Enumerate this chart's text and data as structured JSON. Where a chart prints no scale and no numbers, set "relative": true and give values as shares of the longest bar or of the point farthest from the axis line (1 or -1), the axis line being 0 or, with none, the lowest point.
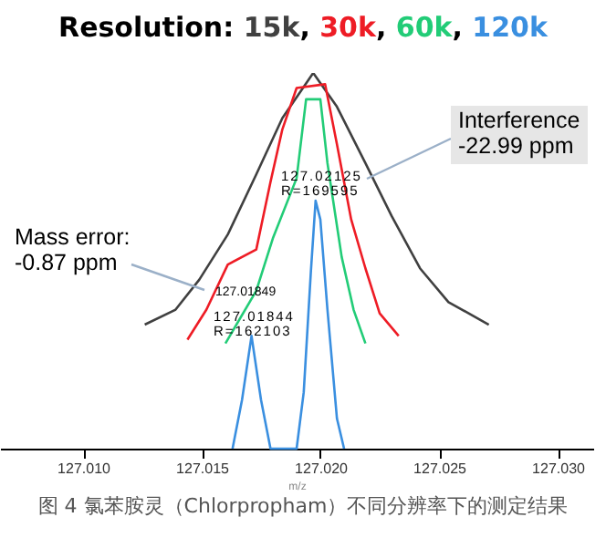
{
  "chart_data": {
    "type": "line",
    "title": "Resolution: 15k, 30k, 60k, 120k",
    "xlabel": "m/z",
    "relative": true,
    "xlim": [
      127.0065,
      127.0315
    ],
    "xticks": [
      {
        "value": 127.01,
        "label": "127.010"
      },
      127.015,
      {
        "value": 127.02,
        "label": "127.020"
      },
      127.025,
      {
        "value": 127.03,
        "label": "127.030"
      }
    ],
    "series": [
      {
        "color": "#404040",
        "x": [
          127.0126,
          127.0139,
          127.0149,
          127.0161,
          127.0173,
          127.0184,
          127.0197,
          127.0207,
          127.0219,
          127.023,
          127.0242,
          127.0254,
          127.0271
        ],
        "values": [
          0.33,
          0.37,
          0.45,
          0.57,
          0.73,
          0.88,
          1,
          0.91,
          0.76,
          0.62,
          0.48,
          0.39,
          0.33
        ]
      },
      {
        "color": "#ee1c25",
        "x": [
          127.0144,
          127.0152,
          127.0161,
          127.0173,
          127.0179,
          127.0184,
          127.019,
          127.0202,
          127.0207,
          127.0213,
          127.0219,
          127.0225,
          127.0233
        ],
        "values": [
          0.29,
          0.37,
          0.49,
          0.53,
          0.71,
          0.85,
          0.96,
          0.97,
          0.81,
          0.61,
          0.48,
          0.36,
          0.3
        ]
      },
      {
        "color": "#22cc77",
        "x": [
          127.016,
          127.0173,
          127.018,
          127.019,
          127.0194,
          127.02,
          127.0203,
          127.0209,
          127.0214,
          127.0219
        ],
        "values": [
          0.28,
          0.42,
          0.56,
          0.72,
          0.93,
          0.93,
          0.76,
          0.51,
          0.37,
          0.28
        ]
      },
      {
        "color": "#3a8fe0",
        "x": [
          127.0163,
          127.0167,
          127.0171,
          127.0175,
          127.0179,
          127.019,
          127.0193,
          127.0196,
          127.0198,
          127.02,
          127.0203,
          127.0207,
          127.021
        ],
        "values": [
          0,
          0.13,
          0.3,
          0.13,
          0,
          0,
          0.15,
          0.47,
          0.66,
          0.61,
          0.37,
          0.08,
          0
        ]
      }
    ],
    "annotations": [
      "Interference\n-22.99 ppm",
      "127.02125\nR=169595",
      "Mass error:\n-0.87 ppm",
      "127.01849",
      "127.01844\nR=162103",
      "图 4 氯苯胺灵（Chlorpropham）不同分辨率下的测定结果"
    ]
  }
}
